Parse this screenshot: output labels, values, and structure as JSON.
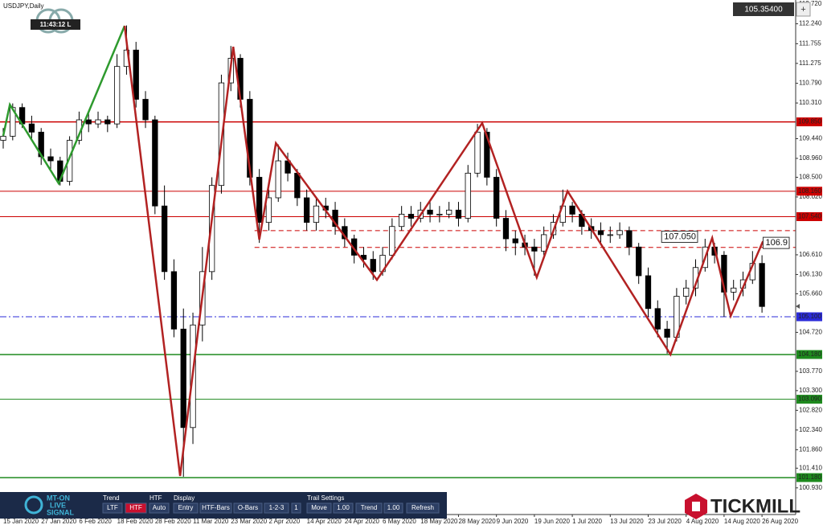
{
  "chart_data": {
    "type": "candlestick",
    "title": "USDJPY,Daily",
    "clock": "11:43:12 L",
    "current_price": {
      "value": 105.354,
      "label": "105.35400"
    },
    "xlim": [
      -0.68,
      167.1
    ],
    "ylim": [
      100.28,
      112.82
    ],
    "xticks": [
      {
        "value": 0,
        "label": "15 Jan 2020"
      },
      {
        "value": 8,
        "label": "27 Jan 2020"
      },
      {
        "value": 16,
        "label": "6 Feb 2020"
      },
      {
        "value": 24,
        "label": "18 Feb 2020"
      },
      {
        "value": 32,
        "label": "28 Feb 2020"
      },
      {
        "value": 40,
        "label": "11 Mar 2020"
      },
      {
        "value": 48,
        "label": "23 Mar 2020"
      },
      {
        "value": 56,
        "label": "2 Apr 2020"
      },
      {
        "value": 64,
        "label": "14 Apr 2020"
      },
      {
        "value": 72,
        "label": "24 Apr 2020"
      },
      {
        "value": 80,
        "label": "6 May 2020"
      },
      {
        "value": 88,
        "label": "18 May 2020"
      },
      {
        "value": 96,
        "label": "28 May 2020"
      },
      {
        "value": 104,
        "label": "9 Jun 2020"
      },
      {
        "value": 112,
        "label": "19 Jun 2020"
      },
      {
        "value": 120,
        "label": "1 Jul 2020"
      },
      {
        "value": 128,
        "label": "13 Jul 2020"
      },
      {
        "value": 136,
        "label": "23 Jul 2020"
      },
      {
        "value": 144,
        "label": "4 Aug 2020"
      },
      {
        "value": 152,
        "label": "14 Aug 2020"
      },
      {
        "value": 160,
        "label": "26 Aug 2020"
      }
    ],
    "yticks": [
      {
        "value": 112.72,
        "label": "112.720"
      },
      {
        "value": 112.24,
        "label": "112.240"
      },
      111.755,
      111.275,
      {
        "value": 110.79,
        "label": "110.790"
      },
      {
        "value": 110.31,
        "label": "110.310"
      },
      {
        "value": 109.44,
        "label": "109.440"
      },
      {
        "value": 108.96,
        "label": "108.960"
      },
      {
        "value": 108.5,
        "label": "108.500"
      },
      {
        "value": 108.02,
        "label": "108.020"
      },
      {
        "value": 106.61,
        "label": "106.610"
      },
      {
        "value": 106.13,
        "label": "106.130"
      },
      {
        "value": 105.66,
        "label": "105.660"
      },
      {
        "value": 104.72,
        "label": "104.720"
      },
      {
        "value": 103.77,
        "label": "103.770"
      },
      {
        "value": 103.3,
        "label": "103.300"
      },
      {
        "value": 102.82,
        "label": "102.820"
      },
      {
        "value": 102.34,
        "label": "102.340"
      },
      {
        "value": 101.86,
        "label": "101.860"
      },
      {
        "value": 101.41,
        "label": "101.410"
      },
      {
        "value": 100.93,
        "label": "100.930"
      }
    ],
    "x": [
      0,
      2,
      4,
      6,
      8,
      10,
      12,
      14,
      16,
      18,
      20,
      22,
      24,
      26,
      28,
      30,
      32,
      34,
      36,
      38,
      40,
      42,
      44,
      46,
      48,
      50,
      52,
      54,
      56,
      58,
      60,
      62,
      64,
      66,
      68,
      70,
      72,
      74,
      76,
      78,
      80,
      82,
      84,
      86,
      88,
      90,
      92,
      94,
      96,
      98,
      100,
      102,
      104,
      106,
      108,
      110,
      112,
      114,
      116,
      118,
      120,
      122,
      124,
      126,
      128,
      130,
      132,
      134,
      136,
      138,
      140,
      142,
      144,
      146,
      148,
      150,
      152,
      154,
      156,
      158,
      160
    ],
    "ohlc": [
      [
        109.4,
        109.7,
        109.2,
        109.5
      ],
      [
        109.5,
        110.3,
        109.4,
        110.2
      ],
      [
        110.2,
        110.3,
        109.7,
        109.8
      ],
      [
        109.8,
        110.0,
        109.4,
        109.6
      ],
      [
        109.6,
        109.7,
        108.8,
        109.0
      ],
      [
        109.0,
        109.2,
        108.7,
        108.9
      ],
      [
        108.9,
        109.0,
        108.3,
        108.4
      ],
      [
        108.4,
        109.5,
        108.3,
        109.4
      ],
      [
        109.4,
        110.1,
        109.3,
        109.9
      ],
      [
        109.9,
        110.1,
        109.6,
        109.8
      ],
      [
        109.8,
        110.1,
        109.7,
        109.9
      ],
      [
        109.9,
        110.0,
        109.6,
        109.8
      ],
      [
        109.8,
        111.5,
        109.7,
        111.2
      ],
      [
        111.2,
        112.2,
        111.0,
        111.6
      ],
      [
        111.6,
        111.8,
        110.2,
        110.4
      ],
      [
        110.4,
        110.6,
        109.7,
        109.9
      ],
      [
        109.9,
        110.0,
        107.6,
        107.8
      ],
      [
        107.8,
        108.3,
        106.0,
        106.2
      ],
      [
        106.2,
        106.5,
        104.6,
        104.8
      ],
      [
        104.8,
        105.3,
        101.2,
        102.4
      ],
      [
        102.4,
        105.2,
        102.0,
        104.9
      ],
      [
        104.9,
        106.8,
        104.5,
        106.2
      ],
      [
        106.2,
        108.5,
        106.0,
        108.3
      ],
      [
        108.3,
        111.0,
        108.1,
        110.8
      ],
      [
        110.8,
        111.7,
        110.6,
        111.4
      ],
      [
        111.4,
        111.5,
        110.2,
        110.4
      ],
      [
        110.4,
        110.6,
        108.3,
        108.5
      ],
      [
        108.5,
        108.7,
        106.9,
        107.4
      ],
      [
        107.4,
        108.2,
        107.2,
        108.0
      ],
      [
        108.0,
        109.3,
        107.9,
        108.9
      ],
      [
        108.9,
        109.1,
        108.4,
        108.6
      ],
      [
        108.6,
        108.7,
        107.8,
        108.0
      ],
      [
        108.0,
        108.2,
        107.2,
        107.4
      ],
      [
        107.4,
        108.0,
        107.2,
        107.8
      ],
      [
        107.8,
        108.0,
        107.5,
        107.7
      ],
      [
        107.7,
        107.9,
        107.1,
        107.3
      ],
      [
        107.3,
        107.5,
        106.8,
        107.0
      ],
      [
        107.0,
        107.1,
        106.4,
        106.6
      ],
      [
        106.6,
        106.8,
        106.3,
        106.5
      ],
      [
        106.5,
        106.7,
        106.0,
        106.2
      ],
      [
        106.2,
        106.8,
        106.1,
        106.6
      ],
      [
        106.6,
        107.5,
        106.5,
        107.3
      ],
      [
        107.3,
        107.8,
        107.2,
        107.6
      ],
      [
        107.6,
        107.8,
        107.3,
        107.5
      ],
      [
        107.5,
        107.9,
        107.4,
        107.7
      ],
      [
        107.7,
        107.9,
        107.4,
        107.6
      ],
      [
        107.6,
        107.8,
        107.4,
        107.6
      ],
      [
        107.6,
        107.9,
        107.5,
        107.7
      ],
      [
        107.7,
        107.9,
        107.3,
        107.5
      ],
      [
        107.5,
        108.8,
        107.4,
        108.6
      ],
      [
        108.6,
        109.8,
        108.5,
        109.6
      ],
      [
        109.6,
        109.7,
        108.3,
        108.5
      ],
      [
        108.5,
        108.7,
        107.3,
        107.5
      ],
      [
        107.5,
        107.7,
        106.7,
        107.0
      ],
      [
        107.0,
        107.2,
        106.6,
        106.9
      ],
      [
        106.9,
        107.1,
        106.6,
        106.8
      ],
      [
        106.8,
        107.0,
        106.1,
        106.7
      ],
      [
        106.7,
        107.3,
        106.6,
        107.1
      ],
      [
        107.1,
        107.6,
        107.0,
        107.4
      ],
      [
        107.4,
        108.2,
        107.3,
        107.8
      ],
      [
        107.8,
        107.9,
        107.4,
        107.6
      ],
      [
        107.6,
        107.7,
        107.1,
        107.3
      ],
      [
        107.3,
        107.5,
        107.0,
        107.2
      ],
      [
        107.2,
        107.4,
        106.9,
        107.1
      ],
      [
        107.1,
        107.3,
        106.9,
        107.1
      ],
      [
        107.1,
        107.4,
        107.0,
        107.2
      ],
      [
        107.2,
        107.3,
        106.6,
        106.8
      ],
      [
        106.8,
        106.9,
        105.9,
        106.1
      ],
      [
        106.1,
        106.3,
        105.1,
        105.3
      ],
      [
        105.3,
        105.5,
        104.6,
        104.8
      ],
      [
        104.8,
        105.0,
        104.2,
        104.6
      ],
      [
        104.6,
        105.8,
        104.5,
        105.6
      ],
      [
        105.6,
        106.0,
        105.4,
        105.8
      ],
      [
        105.8,
        106.5,
        105.6,
        106.3
      ],
      [
        106.3,
        107.0,
        106.2,
        106.8
      ],
      [
        106.8,
        106.9,
        106.4,
        106.6
      ],
      [
        106.6,
        106.7,
        105.1,
        105.7
      ],
      [
        105.7,
        106.0,
        105.5,
        105.8
      ],
      [
        105.8,
        106.2,
        105.6,
        106.0
      ],
      [
        106.0,
        106.7,
        105.9,
        106.4
      ],
      [
        106.4,
        106.6,
        105.2,
        105.35
      ]
    ],
    "lines": [
      {
        "color": "#2e9a2e",
        "x": [
          0,
          1.4,
          11.7,
          25.6
        ],
        "y": [
          109.51,
          110.27,
          108.35,
          112.19
        ]
      },
      {
        "color": "#b22222",
        "x": [
          25.6,
          37.3,
          48.5,
          54,
          57.5,
          78.8,
          101,
          112.5,
          119,
          140.7,
          149.5,
          153.4,
          160.2
        ],
        "y": [
          112.19,
          101.22,
          111.68,
          106.98,
          109.33,
          106.0,
          109.82,
          106.06,
          108.16,
          104.18,
          107.02,
          105.12,
          106.94
        ]
      }
    ],
    "levels": [
      {
        "value": 109.85,
        "label": "109.850",
        "color": "#cc0000",
        "style": "solid",
        "width": 1.5
      },
      {
        "value": 108.16,
        "label": "108.160",
        "color": "#cc0000",
        "style": "solid",
        "width": 1
      },
      {
        "value": 107.54,
        "label": "107.540",
        "color": "#cc0000",
        "style": "solid",
        "width": 1
      },
      {
        "value": 105.1,
        "label": "105.100",
        "color": "#2b2bd9",
        "style": "dash-dot",
        "width": 1
      },
      {
        "value": 104.18,
        "label": "104.180",
        "color": "#1e8a1e",
        "style": "solid",
        "width": 1.5
      },
      {
        "value": 103.09,
        "label": "103.090",
        "color": "#1e8a1e",
        "style": "solid",
        "width": 1
      },
      {
        "value": 101.18,
        "label": "101.180",
        "color": "#1e8a1e",
        "style": "solid",
        "width": 1.5
      }
    ],
    "zone": {
      "x0": 53,
      "values": [
        107.2,
        106.79
      ],
      "color": "#cc0000"
    },
    "annotations": [
      {
        "x": 139,
        "value": 107.05,
        "label": "107.050"
      },
      {
        "x": 160.4,
        "value": 106.9,
        "label": "106.9"
      }
    ]
  },
  "toolbar": {
    "logo": [
      "MT-ON",
      "LIVE",
      "SIGNAL"
    ],
    "trend": {
      "title": "Trend",
      "buttons": [
        "LTF",
        "HTF"
      ]
    },
    "htf": {
      "title": "HTF",
      "buttons": [
        "Auto"
      ]
    },
    "display": {
      "title": "Display",
      "buttons": [
        "Entry",
        "HTF-Bars",
        "O-Bars",
        "1-2-3",
        "1"
      ]
    },
    "trail": {
      "title": "Trail Settings",
      "buttons": [
        "Move",
        "1.00",
        "Trend",
        "1.00",
        "Refresh"
      ]
    }
  },
  "brand": "TICKMILL",
  "add_button": "+"
}
